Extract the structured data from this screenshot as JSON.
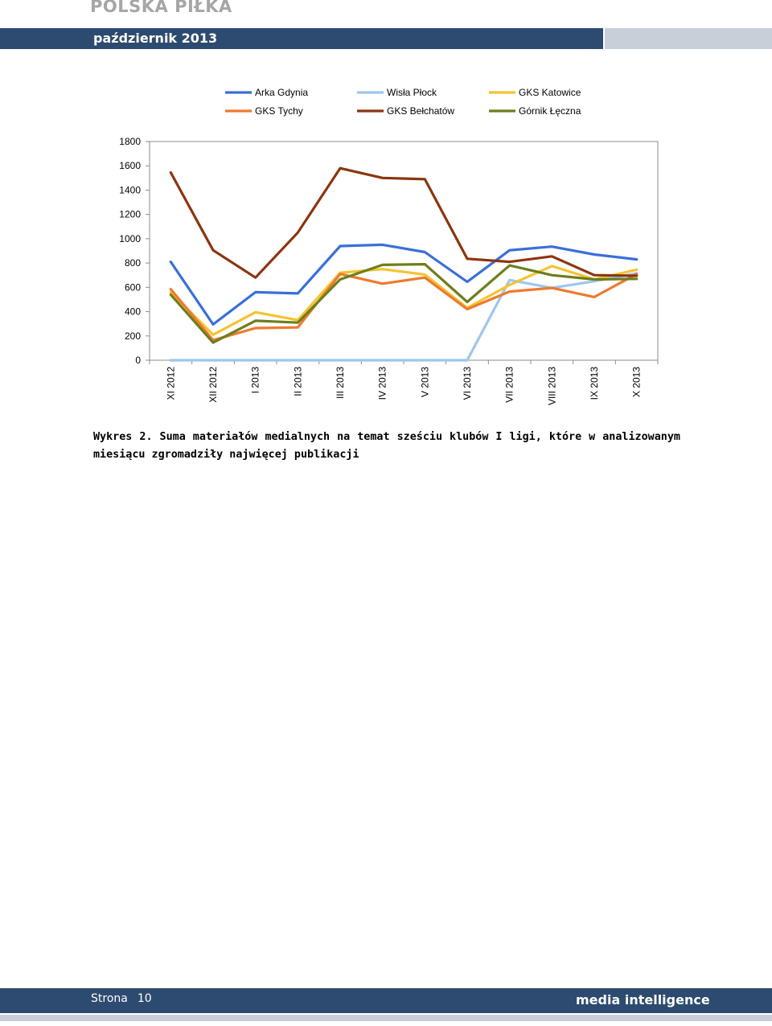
{
  "header": {
    "title": "POLSKA PIŁKA",
    "date": "październik 2013",
    "band_color": "#2d4b70"
  },
  "chart_data": {
    "type": "line",
    "categories": [
      "XI 2012",
      "XII 2012",
      "I 2013",
      "II 2013",
      "III 2013",
      "IV 2013",
      "V 2013",
      "VI 2013",
      "VII 2013",
      "VIII 2013",
      "IX 2013",
      "X 2013"
    ],
    "yticks": [
      0,
      200,
      400,
      600,
      800,
      1000,
      1200,
      1400,
      1600,
      1800
    ],
    "ylim": [
      0,
      1800
    ],
    "grid": false,
    "legend_position": "top",
    "series": [
      {
        "name": "Arka Gdynia",
        "color": "#3a6fd8",
        "values": [
          810,
          295,
          560,
          550,
          940,
          950,
          890,
          645,
          905,
          935,
          870,
          830
        ]
      },
      {
        "name": "Wisła Płock",
        "color": "#9dc7ee",
        "values": [
          0,
          0,
          0,
          0,
          0,
          0,
          0,
          0,
          660,
          595,
          650,
          715
        ]
      },
      {
        "name": "GKS Katowice",
        "color": "#f4c430",
        "values": [
          560,
          210,
          395,
          330,
          720,
          750,
          705,
          430,
          620,
          775,
          665,
          745
        ]
      },
      {
        "name": "GKS Tychy",
        "color": "#ee7a2e",
        "values": [
          585,
          165,
          265,
          270,
          710,
          630,
          680,
          420,
          565,
          595,
          520,
          710
        ]
      },
      {
        "name": "GKS Bełchatów",
        "color": "#8b3510",
        "values": [
          1545,
          905,
          680,
          1050,
          1580,
          1500,
          1490,
          835,
          810,
          855,
          700,
          695
        ]
      },
      {
        "name": "Górnik Łęczna",
        "color": "#6e7e1c",
        "values": [
          540,
          145,
          325,
          310,
          665,
          785,
          790,
          480,
          780,
          700,
          665,
          670
        ]
      }
    ]
  },
  "caption": {
    "text": "Wykres 2. Suma materiałów medialnych na temat sześciu klubów I ligi, które w analizowanym miesiącu zgromadziły najwięcej publikacji"
  },
  "footer": {
    "page_label": "Strona",
    "page_number": "10",
    "brand": "media intelligence"
  }
}
